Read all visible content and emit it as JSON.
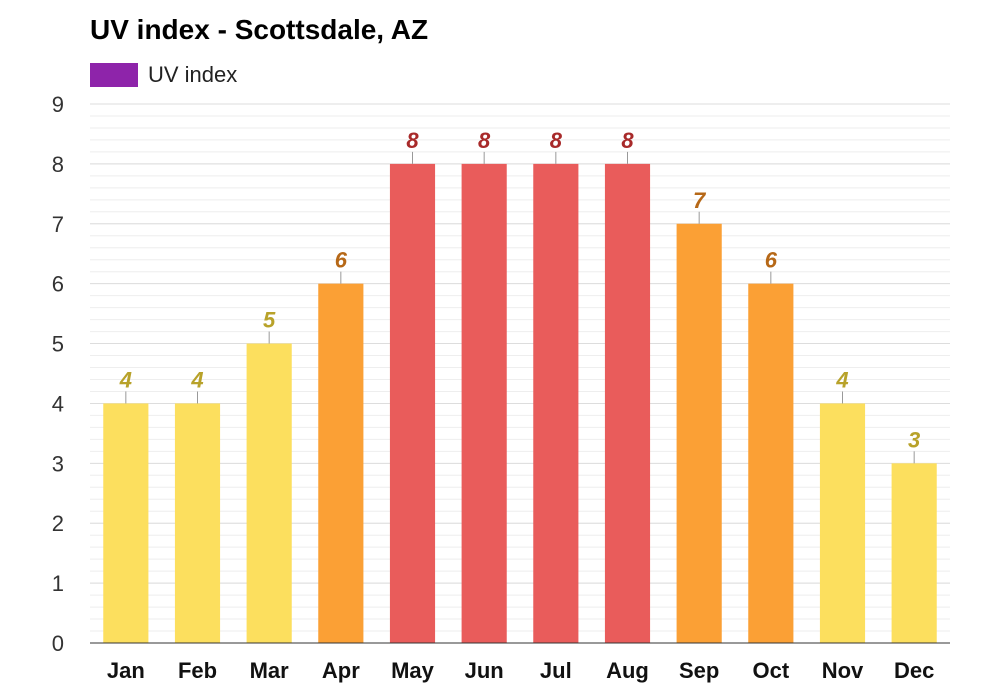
{
  "chart_data": {
    "type": "bar",
    "title": "UV index - Scottsdale, AZ",
    "categories": [
      "Jan",
      "Feb",
      "Mar",
      "Apr",
      "May",
      "Jun",
      "Jul",
      "Aug",
      "Sep",
      "Oct",
      "Nov",
      "Dec"
    ],
    "series": [
      {
        "name": "UV index",
        "values": [
          4,
          4,
          5,
          6,
          8,
          8,
          8,
          8,
          7,
          6,
          4,
          3
        ]
      }
    ],
    "ylim": [
      0,
      9
    ],
    "yticks": [
      0,
      1,
      2,
      3,
      4,
      5,
      6,
      7,
      8,
      9
    ],
    "grid": true,
    "legend": "top-left",
    "legend_color": "#8e24aa",
    "color_levels": {
      "moderate": {
        "max": 5,
        "bar": "#fcdf5e",
        "label": "#b8a22a"
      },
      "high": {
        "max": 7,
        "bar": "#fba035",
        "label": "#b66817"
      },
      "very_high": {
        "max": 10,
        "bar": "#e95c5b",
        "label": "#a82a2a"
      }
    }
  }
}
